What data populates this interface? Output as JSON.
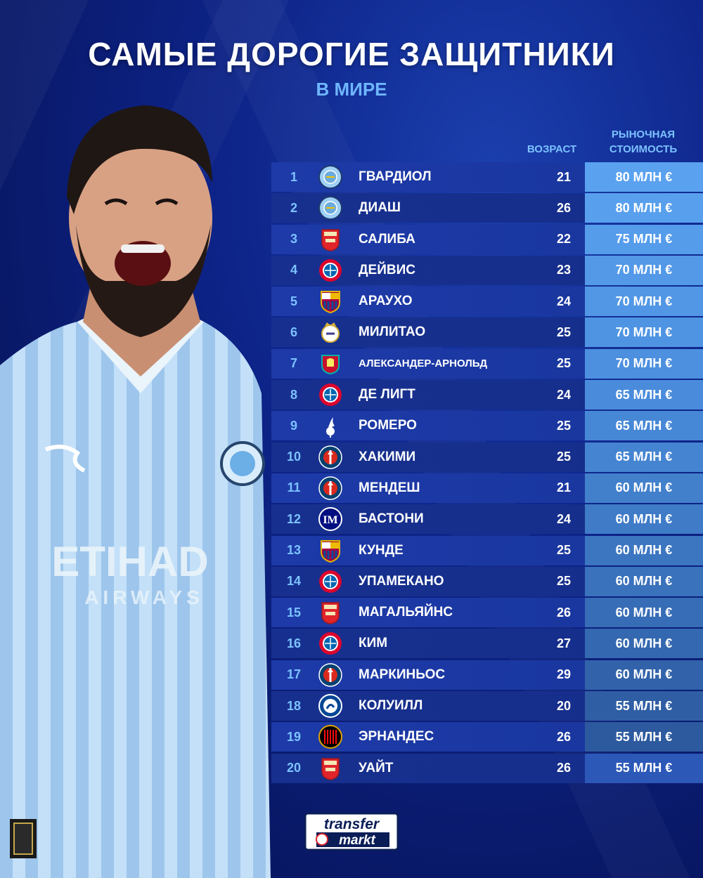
{
  "title": "САМЫЕ ДОРОГИЕ ЗАЩИТНИКИ",
  "subtitle": "В МИРЕ",
  "headers": {
    "age": "ВОЗРАСТ",
    "value_line1": "РЫНОЧНАЯ",
    "value_line2": "СТОИМОСТЬ"
  },
  "colors": {
    "value_top": "#5aa2ef",
    "value_bottom": "#2c58b8",
    "rank": "#7cc2ff",
    "accent": "#6fb6ff"
  },
  "rows": [
    {
      "rank": "1",
      "club": "man-city-icon",
      "name": "ГВАРДИОЛ",
      "age": "21",
      "value": "80 МЛН €"
    },
    {
      "rank": "2",
      "club": "man-city-icon",
      "name": "ДИАШ",
      "age": "26",
      "value": "80 МЛН €"
    },
    {
      "rank": "3",
      "club": "arsenal-icon",
      "name": "САЛИБА",
      "age": "22",
      "value": "75 МЛН €"
    },
    {
      "rank": "4",
      "club": "bayern-icon",
      "name": "ДЕЙВИС",
      "age": "23",
      "value": "70 МЛН €"
    },
    {
      "rank": "5",
      "club": "barcelona-icon",
      "name": "АРАУХО",
      "age": "24",
      "value": "70 МЛН €"
    },
    {
      "rank": "6",
      "club": "real-madrid-icon",
      "name": "МИЛИТАО",
      "age": "25",
      "value": "70 МЛН €"
    },
    {
      "rank": "7",
      "club": "liverpool-icon",
      "name": "АЛЕКСАНДЕР-АРНОЛЬД",
      "age": "25",
      "value": "70 МЛН €"
    },
    {
      "rank": "8",
      "club": "bayern-icon",
      "name": "ДЕ ЛИГТ",
      "age": "24",
      "value": "65 МЛН €"
    },
    {
      "rank": "9",
      "club": "tottenham-icon",
      "name": "РОМЕРО",
      "age": "25",
      "value": "65 МЛН €"
    },
    {
      "rank": "10",
      "club": "psg-icon",
      "name": "ХАКИМИ",
      "age": "25",
      "value": "65 МЛН €"
    },
    {
      "rank": "11",
      "club": "psg-icon",
      "name": "МЕНДЕШ",
      "age": "21",
      "value": "60 МЛН €"
    },
    {
      "rank": "12",
      "club": "inter-icon",
      "name": "БАСТОНИ",
      "age": "24",
      "value": "60 МЛН €"
    },
    {
      "rank": "13",
      "club": "barcelona-icon",
      "name": "КУНДЕ",
      "age": "25",
      "value": "60 МЛН €"
    },
    {
      "rank": "14",
      "club": "bayern-icon",
      "name": "УПАМЕКАНО",
      "age": "25",
      "value": "60 МЛН €"
    },
    {
      "rank": "15",
      "club": "arsenal-icon",
      "name": "МАГАЛЬЯЙНС",
      "age": "26",
      "value": "60 МЛН €"
    },
    {
      "rank": "16",
      "club": "bayern-icon",
      "name": "КИМ",
      "age": "27",
      "value": "60 МЛН €"
    },
    {
      "rank": "17",
      "club": "psg-icon",
      "name": "МАРКИНЬОС",
      "age": "29",
      "value": "60 МЛН €"
    },
    {
      "rank": "18",
      "club": "chelsea-icon",
      "name": "КОЛУИЛЛ",
      "age": "20",
      "value": "55 МЛН €"
    },
    {
      "rank": "19",
      "club": "milan-icon",
      "name": "ЭРНАНДЕС",
      "age": "26",
      "value": "55 МЛН €"
    },
    {
      "rank": "20",
      "club": "arsenal-icon",
      "name": "УАЙТ",
      "age": "26",
      "value": "55 МЛН €"
    }
  ],
  "branding": {
    "logo_line1": "transfer",
    "logo_line2": "markt"
  },
  "jersey": {
    "sponsor_line1": "ETIHAD",
    "sponsor_line2": "AIRWAYS"
  }
}
